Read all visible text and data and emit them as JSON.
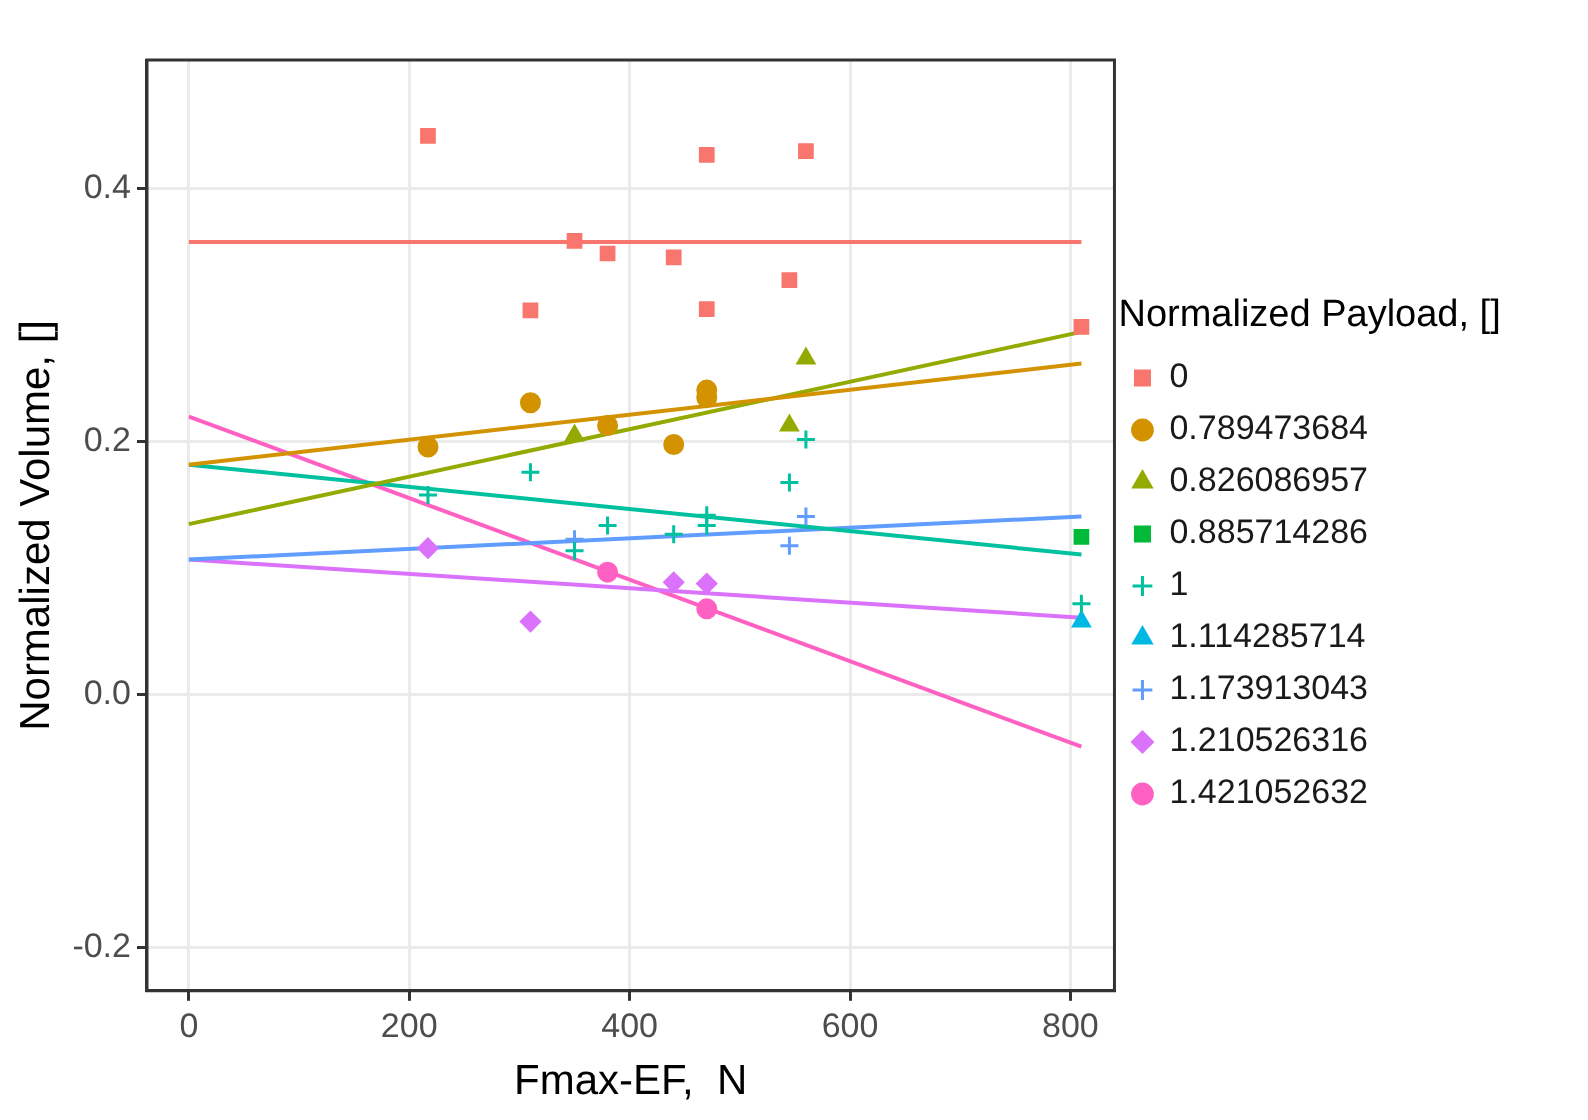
{
  "chart_data": {
    "type": "scatter",
    "xlabel": "Fmax-EF,  N",
    "ylabel": "Normalized Volume, []",
    "legend_title": "Normalized Payload, []",
    "xlim": [
      -38,
      840
    ],
    "ylim": [
      -0.234,
      0.502
    ],
    "xticks": [
      0,
      200,
      400,
      600,
      800
    ],
    "yticks": [
      {
        "value": -0.2,
        "label": "-0.2"
      },
      {
        "value": 0,
        "label": "0.0"
      },
      {
        "value": 0.2,
        "label": "0.2"
      },
      {
        "value": 0.4,
        "label": "0.4"
      }
    ],
    "grid": true,
    "legend": "right",
    "series": [
      {
        "name": "0",
        "color": "#f8766d",
        "marker": "square",
        "x": [
          217,
          310,
          350,
          380,
          440,
          470,
          470,
          545,
          560,
          810
        ],
        "values": [
          0.442,
          0.304,
          0.359,
          0.349,
          0.346,
          0.427,
          0.305,
          0.328,
          0.43,
          0.291
        ]
      },
      {
        "name": "0.789473684",
        "color": "#d39200",
        "marker": "circle",
        "x": [
          217,
          310,
          380,
          440,
          470,
          470
        ],
        "values": [
          0.196,
          0.231,
          0.213,
          0.198,
          0.241,
          0.235
        ]
      },
      {
        "name": "0.826086957",
        "color": "#93aa00",
        "marker": "triangle",
        "x": [
          350,
          545,
          560
        ],
        "values": [
          0.205,
          0.213,
          0.266
        ]
      },
      {
        "name": "0.885714286",
        "color": "#00ba38",
        "marker": "square",
        "x": [
          810
        ],
        "values": [
          0.125
        ]
      },
      {
        "name": "1",
        "color": "#00c19f",
        "marker": "cross",
        "x": [
          217,
          310,
          350,
          380,
          440,
          470,
          470,
          545,
          560,
          810
        ],
        "values": [
          0.158,
          0.176,
          0.114,
          0.134,
          0.127,
          0.142,
          0.134,
          0.168,
          0.202,
          0.072
        ]
      },
      {
        "name": "1.114285714",
        "color": "#00b9e3",
        "marker": "triangle",
        "x": [
          810
        ],
        "values": [
          0.058
        ]
      },
      {
        "name": "1.173913043",
        "color": "#619cff",
        "marker": "cross",
        "x": [
          350,
          545,
          560
        ],
        "values": [
          0.123,
          0.118,
          0.141
        ]
      },
      {
        "name": "1.210526316",
        "color": "#db72fb",
        "marker": "diamond",
        "x": [
          217,
          310,
          440,
          470
        ],
        "values": [
          0.116,
          0.058,
          0.089,
          0.088
        ]
      },
      {
        "name": "1.421052632",
        "color": "#ff61c3",
        "marker": "circle",
        "x": [
          380,
          470
        ],
        "values": [
          0.097,
          0.068
        ]
      },
      {
        "type": "line",
        "color": "#f8766d",
        "x": [
          0,
          810
        ],
        "values": [
          0.358,
          0.358
        ]
      },
      {
        "type": "line",
        "color": "#d39200",
        "x": [
          0,
          810
        ],
        "values": [
          0.182,
          0.262
        ]
      },
      {
        "type": "line",
        "color": "#93aa00",
        "x": [
          0,
          810
        ],
        "values": [
          0.135,
          0.287
        ]
      },
      {
        "type": "line",
        "color": "#00c19f",
        "x": [
          0,
          810
        ],
        "values": [
          0.182,
          0.111
        ]
      },
      {
        "type": "line",
        "color": "#619cff",
        "x": [
          0,
          810
        ],
        "values": [
          0.107,
          0.141
        ]
      },
      {
        "type": "line",
        "color": "#db72fb",
        "x": [
          0,
          810
        ],
        "values": [
          0.107,
          0.061
        ]
      },
      {
        "type": "line",
        "color": "#ff61c3",
        "x": [
          0,
          810
        ],
        "values": [
          0.22,
          -0.041
        ]
      }
    ]
  }
}
